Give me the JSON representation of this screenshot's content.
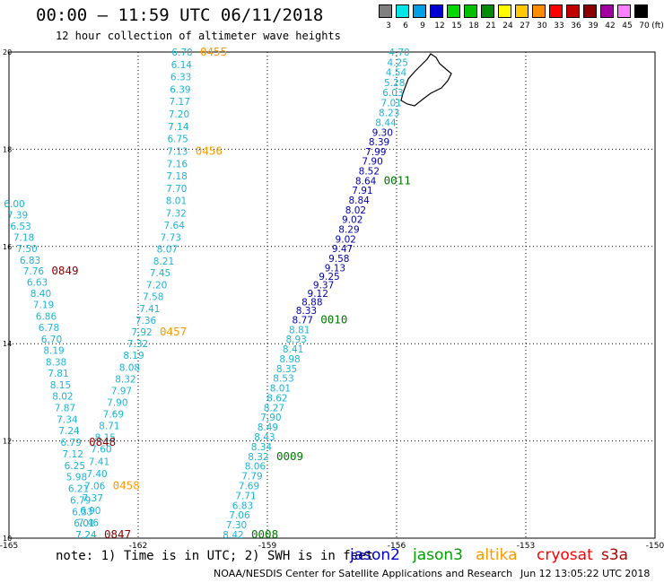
{
  "header": {
    "title": "00:00 – 11:59 UTC 06/11/2018",
    "subtitle": "12 hour collection of altimeter wave heights"
  },
  "color_scale": {
    "unit_label": "(ft)",
    "steps": [
      {
        "label": "3",
        "color": "#808080"
      },
      {
        "label": "6",
        "color": "#00e5e5"
      },
      {
        "label": "9",
        "color": "#00a0e8"
      },
      {
        "label": "12",
        "color": "#0000d0"
      },
      {
        "label": "15",
        "color": "#00d800"
      },
      {
        "label": "18",
        "color": "#00c000"
      },
      {
        "label": "21",
        "color": "#008c00"
      },
      {
        "label": "24",
        "color": "#ffff00"
      },
      {
        "label": "27",
        "color": "#ffc800"
      },
      {
        "label": "30",
        "color": "#ff8c00"
      },
      {
        "label": "33",
        "color": "#ff0000"
      },
      {
        "label": "36",
        "color": "#c00000"
      },
      {
        "label": "39",
        "color": "#8c0000"
      },
      {
        "label": "42",
        "color": "#a000a0"
      },
      {
        "label": "45",
        "color": "#ff80ff"
      },
      {
        "label": "70",
        "color": "#000000"
      }
    ]
  },
  "map": {
    "lon_range": [
      -165,
      -150
    ],
    "lat_range": [
      10,
      20
    ],
    "lon_ticks": [
      "-165",
      "-162",
      "-159",
      "-156",
      "-153",
      "-150"
    ],
    "lat_ticks": [
      "10",
      "12",
      "14",
      "16",
      "18",
      "20"
    ],
    "colors": {
      "light": "#1ab4d8",
      "dark": "#0000b0",
      "orange": "#ff9900",
      "green": "#007800",
      "darkred": "#8b0000"
    }
  },
  "chart_data": {
    "type": "table",
    "tracks": [
      {
        "values": [
          "6.70",
          "6.14",
          "6.33",
          "6.39",
          "7.17",
          "7.20",
          "7.14",
          "6.75",
          "7.13",
          "7.16",
          "7.18",
          "7.70",
          "8.01",
          "7.32",
          "7.64",
          "7.73",
          "8.07",
          "8.21",
          "7.45",
          "7.20",
          "7.58",
          "7.41",
          "7.36",
          "7.92",
          "7.32",
          "8.19",
          "8.08",
          "8.32",
          "7.97",
          "7.90",
          "7.69",
          "8.71",
          "8.15",
          "7.60",
          "7.41",
          "7.40",
          "7.06",
          "7.37",
          "6.90",
          "7.46",
          "7.24"
        ],
        "times": [
          {
            "label": "0455",
            "index": 0,
            "color": "orange"
          },
          {
            "label": "0456",
            "index": 8,
            "color": "orange"
          },
          {
            "label": "0457",
            "index": 23,
            "color": "orange"
          },
          {
            "label": "0458",
            "index": 36,
            "color": "orange"
          }
        ]
      },
      {
        "values": [
          "6.00",
          "7.39",
          "6.53",
          "7.18",
          "7.50",
          "6.83",
          "7.76",
          "6.63",
          "8.40",
          "7.19",
          "6.86",
          "6.78",
          "6.70",
          "8.19",
          "8.38",
          "7.81",
          "8.15",
          "8.02",
          "7.87",
          "7.34",
          "7.24",
          "6.79",
          "7.12",
          "6.25",
          "5.98",
          "6.21",
          "6.79",
          "6.33",
          "6.01",
          "7.24"
        ],
        "times": [
          {
            "label": "0849",
            "index": 6,
            "color": "darkred"
          },
          {
            "label": "0848",
            "index": 21,
            "color": "darkred"
          },
          {
            "label": "0847",
            "index": 29,
            "color": "darkred"
          }
        ]
      },
      {
        "values": [
          "4.70",
          "4.25",
          "4.54",
          "5.28",
          "6.03",
          "7.01",
          "8.23",
          "8.44",
          "9.30",
          "8.39",
          "7.99",
          "7.90",
          "8.52",
          "8.64",
          "7.91",
          "8.84",
          "8.02",
          "9.02",
          "8.29",
          "9.02",
          "9.47",
          "9.58",
          "9.13",
          "9.25",
          "9.37",
          "9.12",
          "8.88",
          "8.33",
          "8.77",
          "8.81",
          "8.93",
          "8.41",
          "8.98",
          "8.35",
          "8.53",
          "8.01",
          "8.62",
          "8.27",
          "7.90",
          "8.49",
          "8.43",
          "8.34",
          "8.32",
          "8.06",
          "7.79",
          "7.69",
          "7.71",
          "6.83",
          "7.06",
          "7.30",
          "8.42"
        ],
        "dark_range": [
          8,
          28
        ],
        "times": [
          {
            "label": "0011",
            "index": 13,
            "color": "green"
          },
          {
            "label": "0010",
            "index": 28,
            "color": "green"
          },
          {
            "label": "0009",
            "index": 42,
            "color": "green"
          },
          {
            "label": "0008",
            "index": 50,
            "color": "green"
          }
        ]
      }
    ]
  },
  "footer": {
    "note": "note: 1) Time is in UTC; 2) SWH is in feet",
    "satellites": [
      {
        "label": "jason2",
        "color": "#0000c8"
      },
      {
        "label": "jason3",
        "color": "#00a000"
      },
      {
        "label": "altika",
        "color": "#ff9900"
      },
      {
        "label": "cryosat",
        "color": "#ff0000"
      },
      {
        "label": "s3a",
        "color": "#b00000"
      }
    ],
    "credit": "NOAA/NESDIS Center for Satellite Applications and Research",
    "timestamp": "Jun 12 13:05:22 UTC 2018"
  }
}
